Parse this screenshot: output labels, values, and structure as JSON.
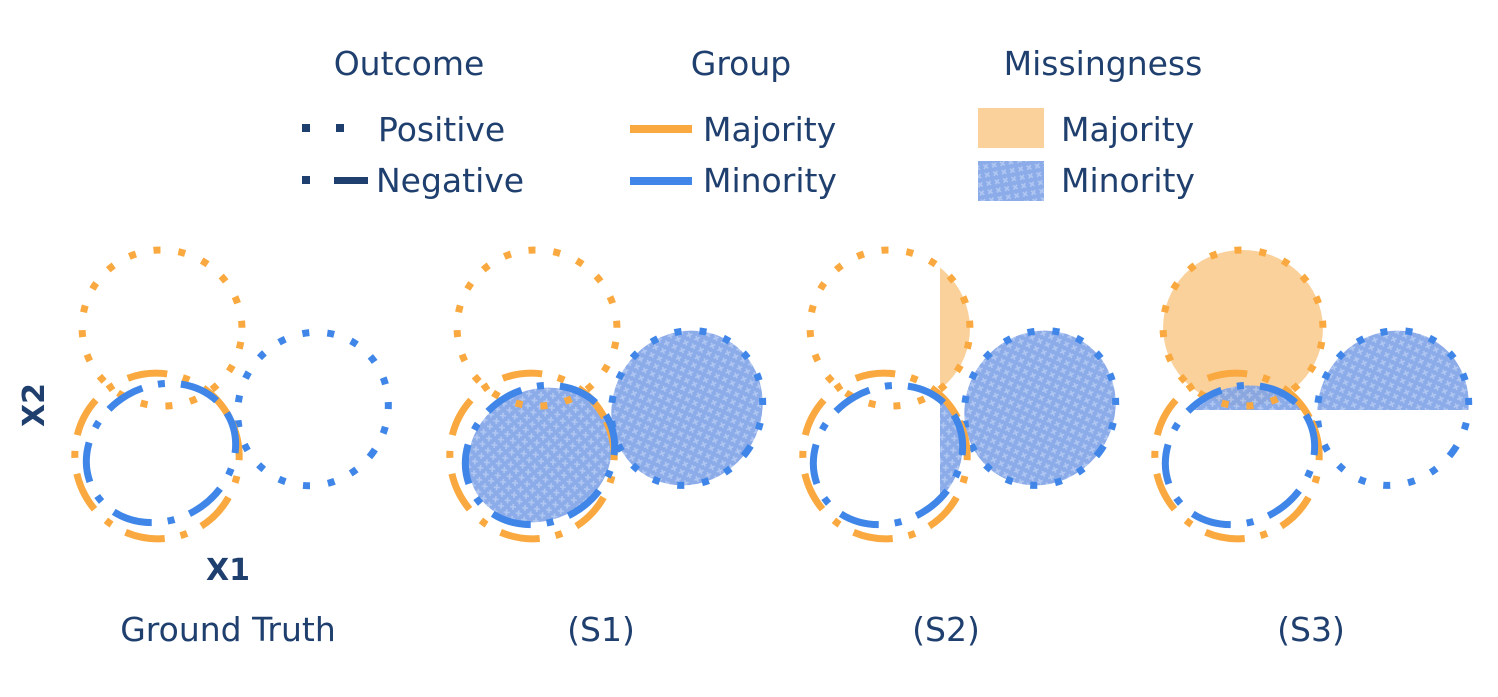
{
  "legend": {
    "outcome": {
      "title": "Outcome",
      "positive": "Positive",
      "negative": "Negative"
    },
    "group": {
      "title": "Group",
      "majority": "Majority",
      "minority": "Minority"
    },
    "missingness": {
      "title": "Missingness",
      "majority": "Majority",
      "minority": "Minority"
    }
  },
  "axes": {
    "x": "X1",
    "y": "X2"
  },
  "panels": [
    {
      "caption": "Ground Truth"
    },
    {
      "caption": "(S1)"
    },
    {
      "caption": "(S2)"
    },
    {
      "caption": "(S3)"
    }
  ],
  "colors": {
    "majority": "#f9a93f",
    "minority": "#3f86e8",
    "missing_majority": "#f9c98a",
    "missing_minority": "#5b86d8",
    "text": "#1f3f6e"
  }
}
